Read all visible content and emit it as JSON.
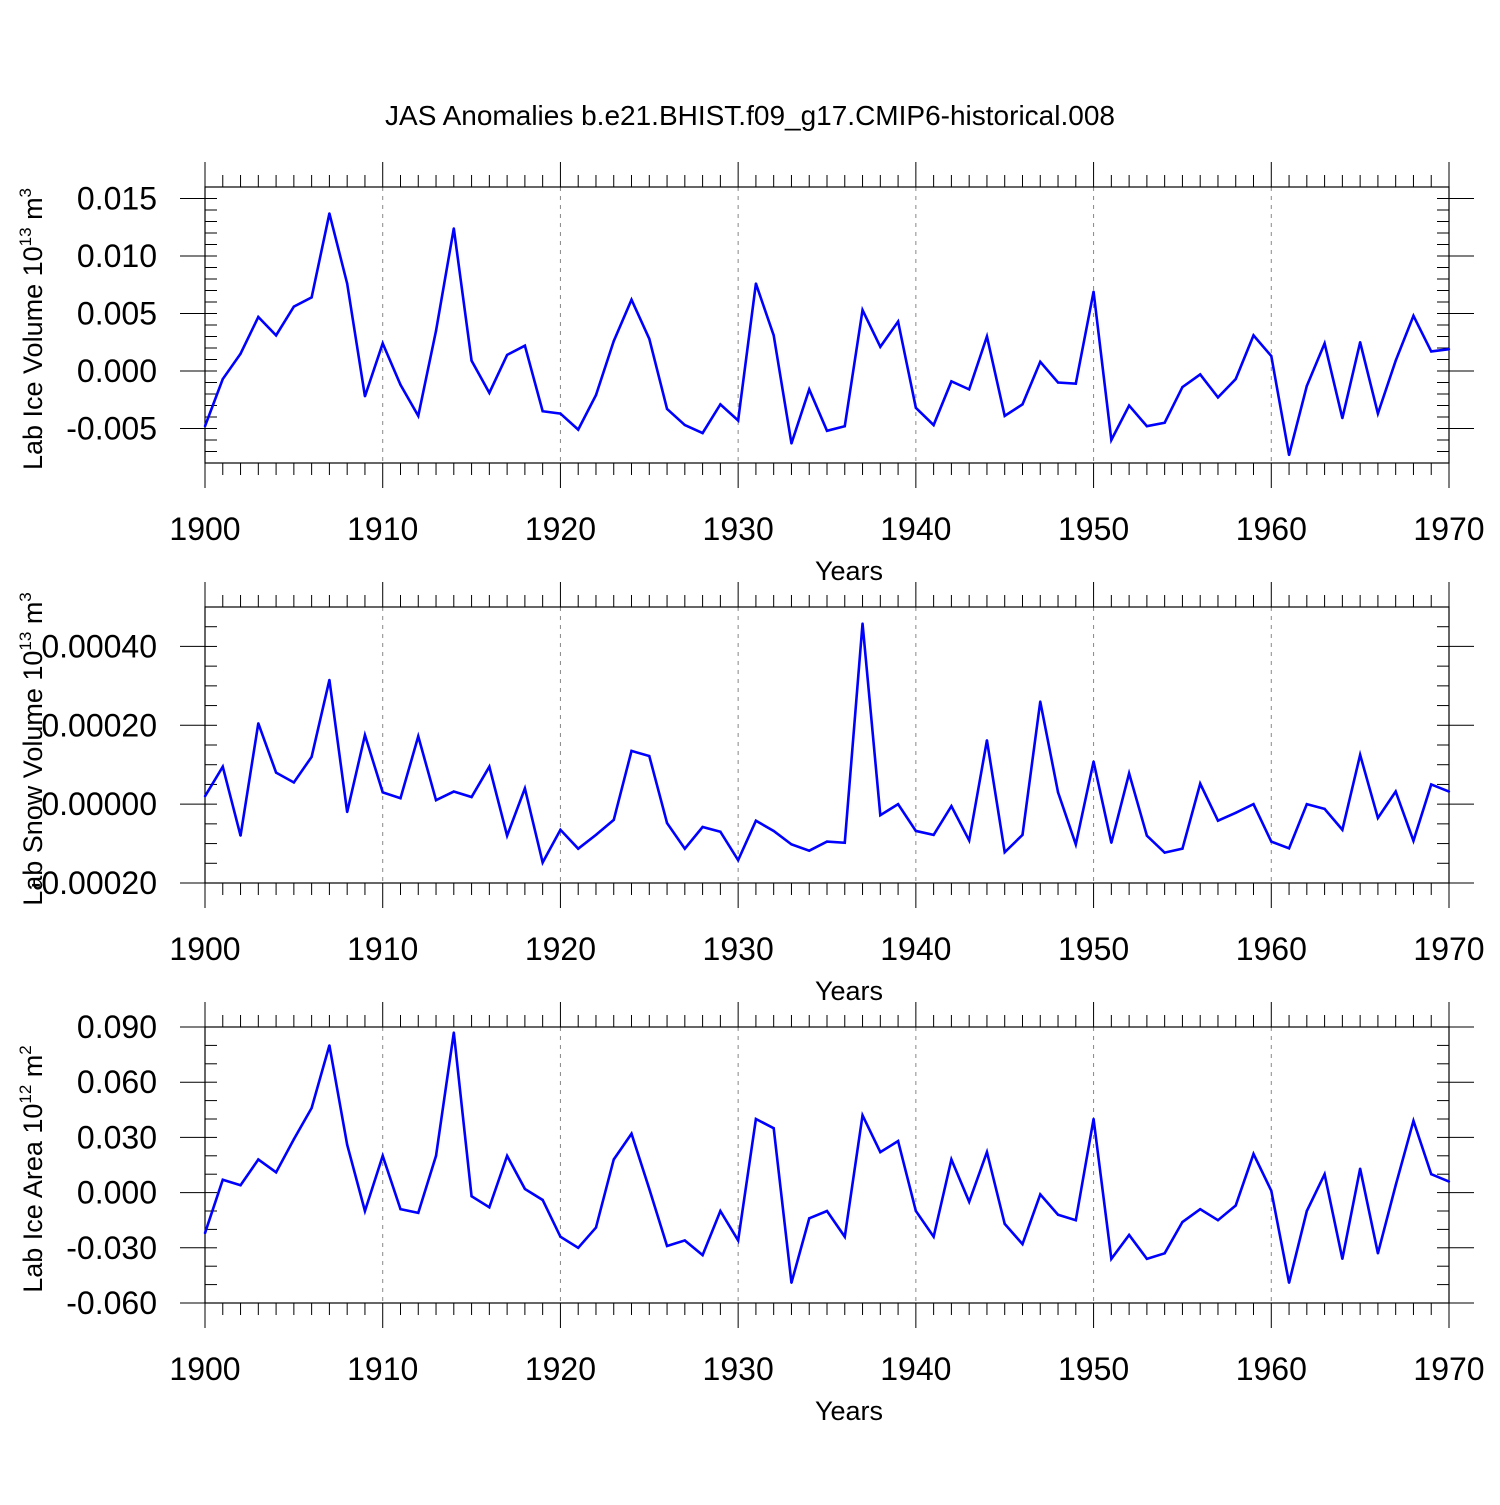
{
  "title": "JAS Anomalies b.e21.BHIST.f09_g17.CMIP6-historical.008",
  "line_color": "#0000ff",
  "grid_color": "#888888",
  "chart_data": [
    {
      "type": "line",
      "xlabel": "Years",
      "ylabel": "Lab Ice Volume 10",
      "ylabel_exp": "13",
      "ylabel_unit": " m",
      "ylabel_unit_exp": "3",
      "xlim": [
        1900,
        1970
      ],
      "ylim": [
        -0.008,
        0.016
      ],
      "yticks": [
        -0.005,
        0.0,
        0.005,
        0.01,
        0.015
      ],
      "yticklabels": [
        "-0.005",
        "0.000",
        "0.005",
        "0.010",
        "0.015"
      ],
      "yminor_step": 0.001,
      "xticks": [
        1900,
        1910,
        1920,
        1930,
        1940,
        1950,
        1960,
        1970
      ],
      "xticklabels": [
        "1900",
        "1910",
        "1920",
        "1930",
        "1940",
        "1950",
        "1960",
        "1970"
      ],
      "x": [
        1900,
        1901,
        1902,
        1903,
        1904,
        1905,
        1906,
        1907,
        1908,
        1909,
        1910,
        1911,
        1912,
        1913,
        1914,
        1915,
        1916,
        1917,
        1918,
        1919,
        1920,
        1921,
        1922,
        1923,
        1924,
        1925,
        1926,
        1927,
        1928,
        1929,
        1930,
        1931,
        1932,
        1933,
        1934,
        1935,
        1936,
        1937,
        1938,
        1939,
        1940,
        1941,
        1942,
        1943,
        1944,
        1945,
        1946,
        1947,
        1948,
        1949,
        1950,
        1951,
        1952,
        1953,
        1954,
        1955,
        1956,
        1957,
        1958,
        1959,
        1960,
        1961,
        1962,
        1963,
        1964,
        1965,
        1966,
        1967,
        1968,
        1969,
        1970
      ],
      "values": [
        -0.0048,
        -0.0007,
        0.0015,
        0.0047,
        0.0031,
        0.0056,
        0.0064,
        0.0137,
        0.0076,
        -0.0022,
        0.0024,
        -0.0012,
        -0.0039,
        0.0035,
        0.0124,
        0.0009,
        -0.0019,
        0.0014,
        0.0022,
        -0.0035,
        -0.0037,
        -0.0051,
        -0.0021,
        0.0026,
        0.0062,
        0.0028,
        -0.0033,
        -0.0047,
        -0.0054,
        -0.0029,
        -0.0043,
        0.0076,
        0.0031,
        -0.0063,
        -0.0016,
        -0.0052,
        -0.0048,
        0.0053,
        0.0021,
        0.0043,
        -0.0032,
        -0.0047,
        -0.0009,
        -0.0016,
        0.003,
        -0.0039,
        -0.0029,
        0.0008,
        -0.001,
        -0.0011,
        0.0069,
        -0.006,
        -0.003,
        -0.0048,
        -0.0045,
        -0.0014,
        -0.0003,
        -0.0023,
        -0.0007,
        0.0031,
        0.0013,
        -0.0073,
        -0.0013,
        0.0024,
        -0.0041,
        0.0025,
        -0.0037,
        0.0009,
        0.0048,
        0.0017,
        0.0019
      ]
    },
    {
      "type": "line",
      "xlabel": "Years",
      "ylabel": "Lab Snow Volume 10",
      "ylabel_exp": "13",
      "ylabel_unit": " m",
      "ylabel_unit_exp": "3",
      "xlim": [
        1900,
        1970
      ],
      "ylim": [
        -0.0002,
        0.0005
      ],
      "yticks": [
        -0.0002,
        0.0,
        0.0002,
        0.0004
      ],
      "yticklabels": [
        "-0.00020",
        "0.00000",
        "0.00020",
        "0.00040"
      ],
      "yminor_step": 5e-05,
      "xticks": [
        1900,
        1910,
        1920,
        1930,
        1940,
        1950,
        1960,
        1970
      ],
      "xticklabels": [
        "1900",
        "1910",
        "1920",
        "1930",
        "1940",
        "1950",
        "1960",
        "1970"
      ],
      "x": [
        1900,
        1901,
        1902,
        1903,
        1904,
        1905,
        1906,
        1907,
        1908,
        1909,
        1910,
        1911,
        1912,
        1913,
        1914,
        1915,
        1916,
        1917,
        1918,
        1919,
        1920,
        1921,
        1922,
        1923,
        1924,
        1925,
        1926,
        1927,
        1928,
        1929,
        1930,
        1931,
        1932,
        1933,
        1934,
        1935,
        1936,
        1937,
        1938,
        1939,
        1940,
        1941,
        1942,
        1943,
        1944,
        1945,
        1946,
        1947,
        1948,
        1949,
        1950,
        1951,
        1952,
        1953,
        1954,
        1955,
        1956,
        1957,
        1958,
        1959,
        1960,
        1961,
        1962,
        1963,
        1964,
        1965,
        1966,
        1967,
        1968,
        1969,
        1970
      ],
      "values": [
        2e-05,
        9.5e-05,
        -8e-05,
        0.000205,
        8e-05,
        5.5e-05,
        0.00012,
        0.000315,
        -2e-05,
        0.000175,
        3e-05,
        1.5e-05,
        0.000172,
        1e-05,
        3.2e-05,
        1.8e-05,
        9.5e-05,
        -8e-05,
        4e-05,
        -0.000148,
        -6.5e-05,
        -0.000113,
        -7.8e-05,
        -4e-05,
        0.000135,
        0.000122,
        -4.8e-05,
        -0.000113,
        -5.8e-05,
        -7e-05,
        -0.000142,
        -4.2e-05,
        -6.8e-05,
        -0.000102,
        -0.000118,
        -9.5e-05,
        -9.8e-05,
        0.000458,
        -2.8e-05,
        0.0,
        -6.8e-05,
        -7.8e-05,
        -5e-06,
        -9.2e-05,
        0.000162,
        -0.000122,
        -7.8e-05,
        0.00026,
        3e-05,
        -0.000102,
        0.000108,
        -9.8e-05,
        7.8e-05,
        -8e-05,
        -0.000123,
        -0.000113,
        5.2e-05,
        -4.2e-05,
        -2.2e-05,
        0.0,
        -9.5e-05,
        -0.000112,
        0.0,
        -1.2e-05,
        -6.5e-05,
        0.000125,
        -3.5e-05,
        3.2e-05,
        -9.3e-05,
        5e-05,
        3.2e-05
      ]
    },
    {
      "type": "line",
      "xlabel": "Years",
      "ylabel": "Lab Ice Area 10",
      "ylabel_exp": "12",
      "ylabel_unit": " m",
      "ylabel_unit_exp": "2",
      "xlim": [
        1900,
        1970
      ],
      "ylim": [
        -0.06,
        0.09
      ],
      "yticks": [
        -0.06,
        -0.03,
        0.0,
        0.03,
        0.06,
        0.09
      ],
      "yticklabels": [
        "-0.060",
        "-0.030",
        "0.000",
        "0.030",
        "0.060",
        "0.090"
      ],
      "yminor_step": 0.01,
      "xticks": [
        1900,
        1910,
        1920,
        1930,
        1940,
        1950,
        1960,
        1970
      ],
      "xticklabels": [
        "1900",
        "1910",
        "1920",
        "1930",
        "1940",
        "1950",
        "1960",
        "1970"
      ],
      "x": [
        1900,
        1901,
        1902,
        1903,
        1904,
        1905,
        1906,
        1907,
        1908,
        1909,
        1910,
        1911,
        1912,
        1913,
        1914,
        1915,
        1916,
        1917,
        1918,
        1919,
        1920,
        1921,
        1922,
        1923,
        1924,
        1925,
        1926,
        1927,
        1928,
        1929,
        1930,
        1931,
        1932,
        1933,
        1934,
        1935,
        1936,
        1937,
        1938,
        1939,
        1940,
        1941,
        1942,
        1943,
        1944,
        1945,
        1946,
        1947,
        1948,
        1949,
        1950,
        1951,
        1952,
        1953,
        1954,
        1955,
        1956,
        1957,
        1958,
        1959,
        1960,
        1961,
        1962,
        1963,
        1964,
        1965,
        1966,
        1967,
        1968,
        1969,
        1970
      ],
      "values": [
        -0.022,
        0.007,
        0.004,
        0.018,
        0.011,
        0.029,
        0.046,
        0.08,
        0.026,
        -0.01,
        0.02,
        -0.009,
        -0.011,
        0.02,
        0.087,
        -0.002,
        -0.008,
        0.02,
        0.002,
        -0.004,
        -0.024,
        -0.03,
        -0.019,
        0.018,
        0.032,
        0.002,
        -0.029,
        -0.026,
        -0.034,
        -0.01,
        -0.026,
        0.04,
        0.035,
        -0.049,
        -0.014,
        -0.01,
        -0.024,
        0.042,
        0.022,
        0.028,
        -0.01,
        -0.024,
        0.018,
        -0.005,
        0.022,
        -0.017,
        -0.028,
        -0.001,
        -0.012,
        -0.015,
        0.04,
        -0.036,
        -0.023,
        -0.036,
        -0.033,
        -0.016,
        -0.009,
        -0.015,
        -0.007,
        0.021,
        0.001,
        -0.049,
        -0.01,
        0.01,
        -0.036,
        0.013,
        -0.033,
        0.004,
        0.039,
        0.01,
        0.006
      ]
    }
  ]
}
